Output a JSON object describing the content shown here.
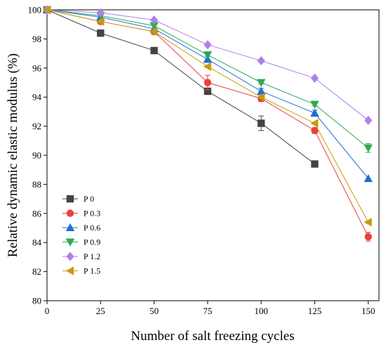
{
  "chart_data": {
    "type": "line",
    "xlabel": "Number of salt freezing cycles",
    "ylabel": "Relative dynamic elastic modulus (%)",
    "xlim": [
      0,
      155
    ],
    "ylim": [
      80,
      100
    ],
    "xticks": [
      0,
      25,
      50,
      75,
      100,
      125,
      150
    ],
    "yticks": [
      80,
      82,
      84,
      86,
      88,
      90,
      92,
      94,
      96,
      98,
      100
    ],
    "grid": false,
    "legend_position": "bottom-left",
    "series": [
      {
        "name": "P 0",
        "color": "#444444",
        "marker": "square",
        "x": [
          0,
          25,
          50,
          75,
          100,
          125
        ],
        "y": [
          100,
          98.4,
          97.2,
          94.4,
          92.2,
          89.4
        ],
        "err": [
          0,
          0,
          0,
          0.2,
          0.5,
          0
        ]
      },
      {
        "name": "P 0.3",
        "color": "#e8413c",
        "marker": "circle",
        "x": [
          0,
          25,
          50,
          75,
          100,
          125,
          150
        ],
        "y": [
          100,
          99.2,
          98.5,
          95.0,
          93.9,
          91.7,
          84.4
        ],
        "err": [
          0,
          0,
          0,
          0.5,
          0.2,
          0.2,
          0.3
        ]
      },
      {
        "name": "P 0.6",
        "color": "#1f6fd6",
        "marker": "triangle-up",
        "x": [
          0,
          25,
          50,
          75,
          100,
          125,
          150
        ],
        "y": [
          100,
          99.5,
          98.7,
          96.6,
          94.4,
          92.9,
          88.4
        ],
        "err": [
          0,
          0,
          0,
          0.2,
          0.2,
          0.2,
          0
        ]
      },
      {
        "name": "P 0.9",
        "color": "#2eaa52",
        "marker": "triangle-down",
        "x": [
          0,
          25,
          50,
          75,
          100,
          125,
          150
        ],
        "y": [
          100,
          99.6,
          98.9,
          96.9,
          95.0,
          93.5,
          90.5
        ],
        "err": [
          0,
          0,
          0,
          0.1,
          0.1,
          0.1,
          0.3
        ]
      },
      {
        "name": "P 1.2",
        "color": "#b07ee8",
        "marker": "diamond",
        "x": [
          0,
          25,
          50,
          75,
          100,
          125,
          150
        ],
        "y": [
          100,
          99.8,
          99.3,
          97.6,
          96.5,
          95.3,
          92.4
        ],
        "err": [
          0,
          0,
          0,
          0,
          0,
          0,
          0
        ]
      },
      {
        "name": "P 1.5",
        "color": "#c99a10",
        "marker": "triangle-left",
        "x": [
          0,
          25,
          50,
          75,
          100,
          125,
          150
        ],
        "y": [
          100,
          99.2,
          98.5,
          96.1,
          94.0,
          92.2,
          85.4
        ],
        "err": [
          0,
          0,
          0.2,
          0,
          0,
          0,
          0
        ]
      }
    ]
  }
}
